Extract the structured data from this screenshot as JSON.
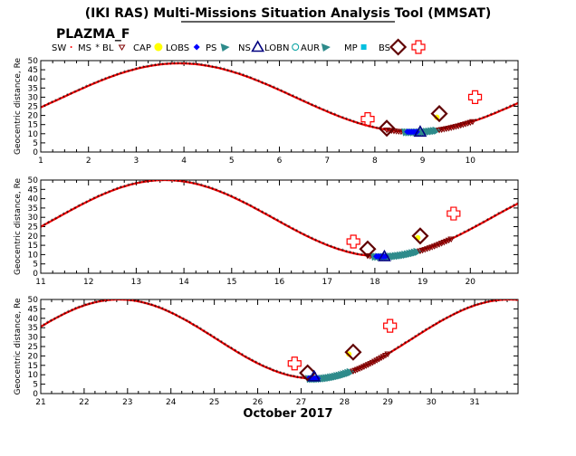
{
  "header": {
    "title": "(IKI RAS) Multi-Missions Situation Analysis Tool (MMSAT)",
    "subtitle": "PLAZMA_F"
  },
  "legend": [
    {
      "label": "SW",
      "color": "#ff0000",
      "symbol": "tiny"
    },
    {
      "label": "MS",
      "color": "#ff0000",
      "symbol": "star"
    },
    {
      "label": "BL",
      "color": "#800000",
      "symbol": "tri-down"
    },
    {
      "label": "CAP",
      "color": "#ffff00",
      "symbol": "dot"
    },
    {
      "label": "LOBS",
      "color": "#0000ff",
      "symbol": "diamond-fill"
    },
    {
      "label": "PS",
      "color": "#2e8b8b",
      "symbol": "tri-fill"
    },
    {
      "label": "NS",
      "color": "#000080",
      "symbol": "tri-up"
    },
    {
      "label": "LOBN",
      "color": "#00a0a0",
      "symbol": "circle-open"
    },
    {
      "label": "AUR",
      "color": "#2e8b8b",
      "symbol": "tri-fill"
    },
    {
      "label": "MP",
      "color": "#00c0e0",
      "symbol": "square-fill"
    },
    {
      "label": "BS",
      "color": "#600000",
      "symbol": "diamond-open"
    },
    {
      "label": "",
      "color": "#ff0000",
      "symbol": "cross-open"
    }
  ],
  "chart_data": [
    {
      "type": "scatter",
      "ylabel": "Geocentric distance, Re",
      "xlim": [
        1,
        11
      ],
      "ylim": [
        0,
        50
      ],
      "xticks": [
        1,
        2,
        3,
        4,
        5,
        6,
        7,
        8,
        9,
        10
      ],
      "yticks": [
        0,
        5,
        10,
        15,
        20,
        25,
        30,
        35,
        40,
        45,
        50
      ],
      "orbit": {
        "apogee_day": 3.9,
        "perigee_day": 8.8,
        "apogee": 48.5,
        "perigee": 11
      },
      "markers": [
        {
          "type": "MP",
          "x": 7.85,
          "y": 18
        },
        {
          "type": "BS",
          "x": 8.25,
          "y": 13
        },
        {
          "type": "NS",
          "x": 8.95,
          "y": 11
        },
        {
          "type": "CAP",
          "x": 9.3,
          "y": 19
        },
        {
          "type": "BS",
          "x": 9.35,
          "y": 21
        },
        {
          "type": "MP",
          "x": 10.1,
          "y": 30
        }
      ]
    },
    {
      "type": "scatter",
      "ylabel": "Geocentric distance, Re",
      "xlim": [
        11,
        21
      ],
      "ylim": [
        0,
        50
      ],
      "xticks": [
        11,
        12,
        13,
        14,
        15,
        16,
        17,
        18,
        19,
        20
      ],
      "yticks": [
        0,
        5,
        10,
        15,
        20,
        25,
        30,
        35,
        40,
        45,
        50
      ],
      "orbit": {
        "apogee_day": 13.6,
        "perigee_day": 18.15,
        "apogee": 50,
        "perigee": 9
      },
      "markers": [
        {
          "type": "MP",
          "x": 17.55,
          "y": 17
        },
        {
          "type": "BS",
          "x": 17.85,
          "y": 13
        },
        {
          "type": "NS",
          "x": 18.2,
          "y": 9
        },
        {
          "type": "CAP",
          "x": 18.9,
          "y": 19
        },
        {
          "type": "BS",
          "x": 18.95,
          "y": 20
        },
        {
          "type": "MP",
          "x": 19.65,
          "y": 32
        }
      ]
    },
    {
      "type": "scatter",
      "ylabel": "Geocentric distance, Re",
      "xlim": [
        21,
        32
      ],
      "ylim": [
        0,
        50
      ],
      "xticks": [
        21,
        22,
        23,
        24,
        25,
        26,
        27,
        28,
        29,
        30,
        31
      ],
      "yticks": [
        0,
        5,
        10,
        15,
        20,
        25,
        30,
        35,
        40,
        45,
        50
      ],
      "orbit": {
        "apogee_day": 22.8,
        "perigee_day": 27.3,
        "apogee": 50,
        "perigee": 8,
        "apogee2_day": 31.7
      },
      "markers": [
        {
          "type": "MP",
          "x": 26.85,
          "y": 16
        },
        {
          "type": "BS",
          "x": 27.15,
          "y": 11
        },
        {
          "type": "NS",
          "x": 27.3,
          "y": 9
        },
        {
          "type": "CAP",
          "x": 28.1,
          "y": 21
        },
        {
          "type": "BS",
          "x": 28.2,
          "y": 22
        },
        {
          "type": "MP",
          "x": 29.05,
          "y": 36
        }
      ]
    }
  ],
  "xaxis_label": "October 2017"
}
